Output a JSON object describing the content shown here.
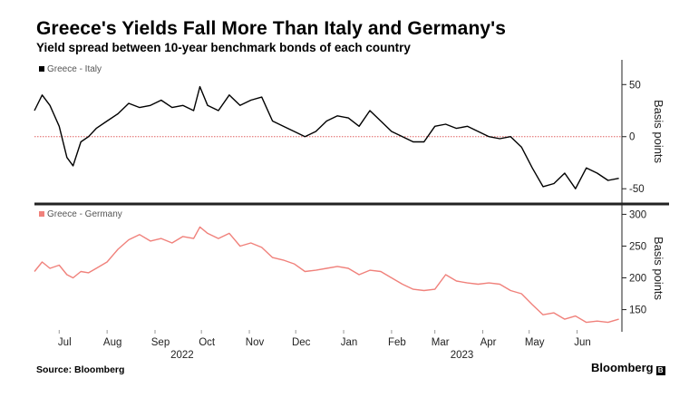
{
  "title": "Greece's Yields Fall More Than Italy and Germany's",
  "subtitle": "Yield spread between 10-year benchmark bonds of each country",
  "source": "Source: Bloomberg",
  "brand": "Bloomberg",
  "colors": {
    "italy": "#000000",
    "germany": "#f0817b",
    "zero_line": "#e06060",
    "divider": "#222222"
  },
  "chart_data": [
    {
      "type": "line",
      "legend": "Greece - Italy",
      "ylabel": "Basis points",
      "yticks": [
        50,
        0,
        -50
      ],
      "ylim": [
        -62,
        72
      ],
      "xlim": [
        "2022-06-15",
        "2023-06-30"
      ],
      "reference_line": 0,
      "series": [
        {
          "name": "Greece - Italy",
          "x": [
            "2022-06-15",
            "2022-06-20",
            "2022-06-25",
            "2022-07-01",
            "2022-07-06",
            "2022-07-10",
            "2022-07-15",
            "2022-07-20",
            "2022-07-25",
            "2022-08-01",
            "2022-08-08",
            "2022-08-15",
            "2022-08-22",
            "2022-08-29",
            "2022-09-05",
            "2022-09-12",
            "2022-09-19",
            "2022-09-26",
            "2022-09-30",
            "2022-10-05",
            "2022-10-12",
            "2022-10-19",
            "2022-10-26",
            "2022-11-02",
            "2022-11-09",
            "2022-11-16",
            "2022-11-23",
            "2022-11-30",
            "2022-12-07",
            "2022-12-14",
            "2022-12-21",
            "2022-12-28",
            "2023-01-04",
            "2023-01-11",
            "2023-01-18",
            "2023-01-25",
            "2023-02-01",
            "2023-02-08",
            "2023-02-15",
            "2023-02-22",
            "2023-03-01",
            "2023-03-08",
            "2023-03-15",
            "2023-03-22",
            "2023-03-29",
            "2023-04-05",
            "2023-04-12",
            "2023-04-19",
            "2023-04-26",
            "2023-05-03",
            "2023-05-10",
            "2023-05-17",
            "2023-05-24",
            "2023-05-31",
            "2023-06-07",
            "2023-06-14",
            "2023-06-21",
            "2023-06-28"
          ],
          "values": [
            25,
            40,
            30,
            10,
            -20,
            -28,
            -5,
            0,
            8,
            15,
            22,
            32,
            28,
            30,
            35,
            28,
            30,
            25,
            48,
            30,
            25,
            40,
            30,
            35,
            38,
            15,
            10,
            5,
            0,
            5,
            15,
            20,
            18,
            10,
            25,
            15,
            5,
            0,
            -5,
            -5,
            10,
            12,
            8,
            10,
            5,
            0,
            -2,
            0,
            -10,
            -30,
            -48,
            -45,
            -35,
            -50,
            -30,
            -35,
            -42,
            -40
          ]
        }
      ]
    },
    {
      "type": "line",
      "legend": "Greece - Germany",
      "ylabel": "Basis points",
      "yticks": [
        300,
        250,
        200,
        150
      ],
      "ylim": [
        118,
        312
      ],
      "xlim": [
        "2022-06-15",
        "2023-06-30"
      ],
      "xticks": [
        "Jul",
        "Aug",
        "Sep",
        "Oct",
        "Nov",
        "Dec",
        "Jan",
        "Feb",
        "Mar",
        "Apr",
        "May",
        "Jun"
      ],
      "xtick_dates": [
        "2022-07-01",
        "2022-08-01",
        "2022-09-01",
        "2022-10-01",
        "2022-11-01",
        "2022-12-01",
        "2023-01-01",
        "2023-02-01",
        "2023-03-01",
        "2023-04-01",
        "2023-05-01",
        "2023-06-01"
      ],
      "year_labels": [
        "2022",
        "2023"
      ],
      "year_dates": [
        "2022-09-15",
        "2023-03-15"
      ],
      "series": [
        {
          "name": "Greece - Germany",
          "x": [
            "2022-06-15",
            "2022-06-20",
            "2022-06-25",
            "2022-07-01",
            "2022-07-06",
            "2022-07-10",
            "2022-07-15",
            "2022-07-20",
            "2022-07-25",
            "2022-08-01",
            "2022-08-08",
            "2022-08-15",
            "2022-08-22",
            "2022-08-29",
            "2022-09-05",
            "2022-09-12",
            "2022-09-19",
            "2022-09-26",
            "2022-09-30",
            "2022-10-05",
            "2022-10-12",
            "2022-10-19",
            "2022-10-26",
            "2022-11-02",
            "2022-11-09",
            "2022-11-16",
            "2022-11-23",
            "2022-11-30",
            "2022-12-07",
            "2022-12-14",
            "2022-12-21",
            "2022-12-28",
            "2023-01-04",
            "2023-01-11",
            "2023-01-18",
            "2023-01-25",
            "2023-02-01",
            "2023-02-08",
            "2023-02-15",
            "2023-02-22",
            "2023-03-01",
            "2023-03-08",
            "2023-03-15",
            "2023-03-22",
            "2023-03-29",
            "2023-04-05",
            "2023-04-12",
            "2023-04-19",
            "2023-04-26",
            "2023-05-03",
            "2023-05-10",
            "2023-05-17",
            "2023-05-24",
            "2023-05-31",
            "2023-06-07",
            "2023-06-14",
            "2023-06-21",
            "2023-06-28"
          ],
          "values": [
            210,
            225,
            215,
            220,
            205,
            200,
            210,
            208,
            215,
            225,
            245,
            260,
            268,
            258,
            262,
            255,
            265,
            262,
            280,
            270,
            262,
            270,
            250,
            255,
            248,
            232,
            228,
            222,
            210,
            212,
            215,
            218,
            215,
            205,
            212,
            210,
            200,
            190,
            182,
            180,
            182,
            205,
            195,
            192,
            190,
            192,
            190,
            180,
            175,
            158,
            142,
            145,
            135,
            140,
            130,
            132,
            130,
            135
          ]
        }
      ]
    }
  ]
}
